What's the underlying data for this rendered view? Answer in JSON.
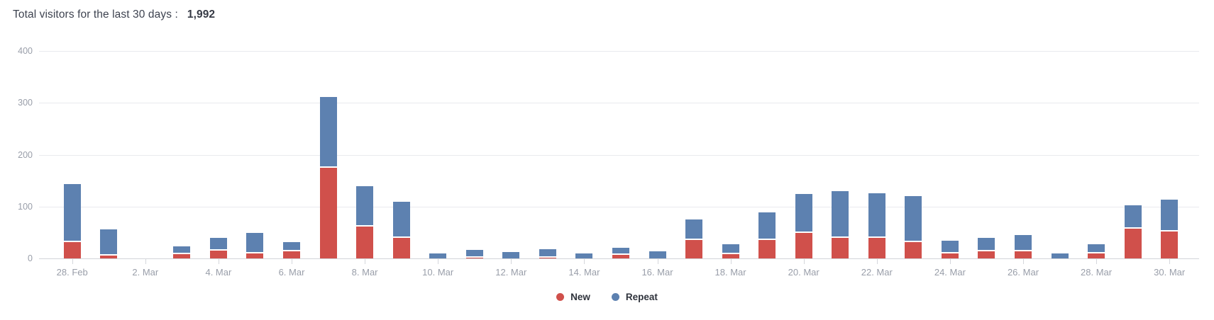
{
  "header": {
    "title_label": "Total visitors for the last 30 days :",
    "total_value": "1,992"
  },
  "colors": {
    "new": "#d0504b",
    "repeat": "#5d81b0",
    "grid": "#e9eaee",
    "baseline": "#d2d4d9",
    "axis_text": "#999ea9",
    "title_text": "#3e4350",
    "legend_text": "#2f333c"
  },
  "legend": {
    "items": [
      {
        "label": "New",
        "color": "#d0504b"
      },
      {
        "label": "Repeat",
        "color": "#5d81b0"
      }
    ]
  },
  "chart_data": {
    "type": "bar",
    "stacked": true,
    "title": "Total visitors for the last 30 days : 1,992",
    "total": 1992,
    "categories": [
      "28. Feb",
      "1. Mar",
      "2. Mar",
      "3. Mar",
      "4. Mar",
      "5. Mar",
      "6. Mar",
      "7. Mar",
      "8. Mar",
      "9. Mar",
      "10. Mar",
      "11. Mar",
      "12. Mar",
      "13. Mar",
      "14. Mar",
      "15. Mar",
      "16. Mar",
      "17. Mar",
      "18. Mar",
      "19. Mar",
      "20. Mar",
      "21. Mar",
      "22. Mar",
      "23. Mar",
      "24. Mar",
      "25. Mar",
      "26. Mar",
      "27. Mar",
      "28. Mar",
      "29. Mar",
      "30. Mar"
    ],
    "x_tick_labels": [
      "28. Feb",
      "2. Mar",
      "4. Mar",
      "6. Mar",
      "8. Mar",
      "10. Mar",
      "12. Mar",
      "14. Mar",
      "16. Mar",
      "18. Mar",
      "20. Mar",
      "22. Mar",
      "24. Mar",
      "26. Mar",
      "28. Mar",
      "30. Mar"
    ],
    "x_tick_every": 2,
    "series": [
      {
        "name": "New",
        "color": "#d0504b",
        "values": [
          32,
          5,
          0,
          8,
          15,
          10,
          13,
          175,
          62,
          39,
          0,
          2,
          0,
          2,
          0,
          7,
          0,
          36,
          8,
          36,
          49,
          39,
          39,
          31,
          10,
          13,
          14,
          0,
          10,
          58,
          52
        ]
      },
      {
        "name": "Repeat",
        "color": "#5d81b0",
        "values": [
          109,
          48,
          0,
          12,
          22,
          36,
          15,
          133,
          74,
          68,
          10,
          11,
          12,
          13,
          9,
          11,
          13,
          37,
          17,
          50,
          72,
          88,
          84,
          87,
          21,
          24,
          28,
          10,
          14,
          41,
          58
        ]
      }
    ],
    "xlabel": "",
    "ylabel": "",
    "ylim": [
      0,
      400
    ],
    "y_ticks": [
      0,
      100,
      200,
      300,
      400
    ],
    "grid": true,
    "legend_position": "bottom-center"
  }
}
